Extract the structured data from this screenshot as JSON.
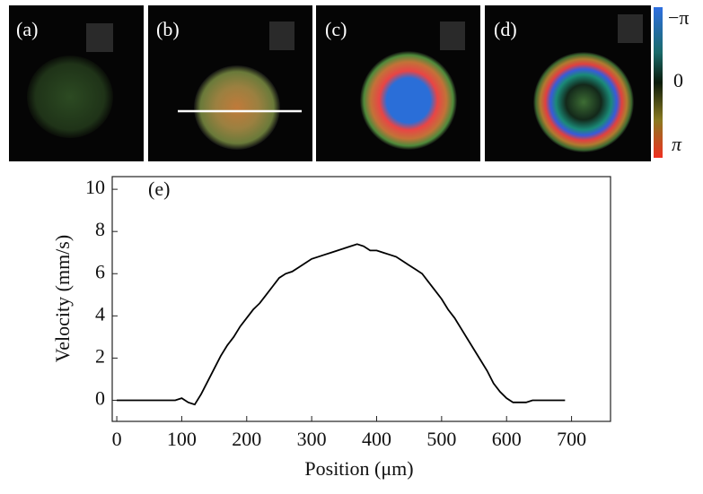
{
  "panels": [
    {
      "label": "(a)"
    },
    {
      "label": "(b)"
    },
    {
      "label": "(c)"
    },
    {
      "label": "(d)"
    }
  ],
  "colorbar": {
    "labels": [
      "−π",
      "0",
      "π"
    ]
  },
  "chart_data": {
    "type": "line",
    "panel_label": "(e)",
    "x_label": "Position (μm)",
    "y_label": "Velocity (mm/s)",
    "x": [
      0,
      90,
      100,
      110,
      120,
      130,
      140,
      150,
      160,
      170,
      180,
      190,
      200,
      210,
      220,
      230,
      240,
      250,
      260,
      270,
      280,
      290,
      300,
      310,
      320,
      330,
      340,
      350,
      360,
      370,
      380,
      390,
      400,
      410,
      420,
      430,
      440,
      450,
      460,
      470,
      480,
      490,
      500,
      510,
      520,
      530,
      540,
      550,
      560,
      570,
      580,
      590,
      600,
      610,
      620,
      630,
      640,
      690
    ],
    "series": [
      {
        "color": "#000000",
        "values": [
          0,
          0,
          0.1,
          -0.1,
          -0.2,
          0.3,
          0.9,
          1.5,
          2.1,
          2.6,
          3.0,
          3.5,
          3.9,
          4.3,
          4.6,
          5.0,
          5.4,
          5.8,
          6.0,
          6.1,
          6.3,
          6.5,
          6.7,
          6.8,
          6.9,
          7.0,
          7.1,
          7.2,
          7.3,
          7.4,
          7.3,
          7.1,
          7.1,
          7.0,
          6.9,
          6.8,
          6.6,
          6.4,
          6.2,
          6.0,
          5.6,
          5.2,
          4.8,
          4.3,
          3.9,
          3.4,
          2.9,
          2.4,
          1.9,
          1.4,
          0.8,
          0.4,
          0.1,
          -0.1,
          -0.1,
          -0.1,
          0,
          0
        ]
      }
    ],
    "xlim": [
      -7,
      760
    ],
    "ylim": [
      -1,
      10.6
    ],
    "xticks": [
      0,
      100,
      200,
      300,
      400,
      500,
      600,
      700
    ],
    "yticks": [
      0,
      2,
      4,
      6,
      8,
      10
    ]
  }
}
